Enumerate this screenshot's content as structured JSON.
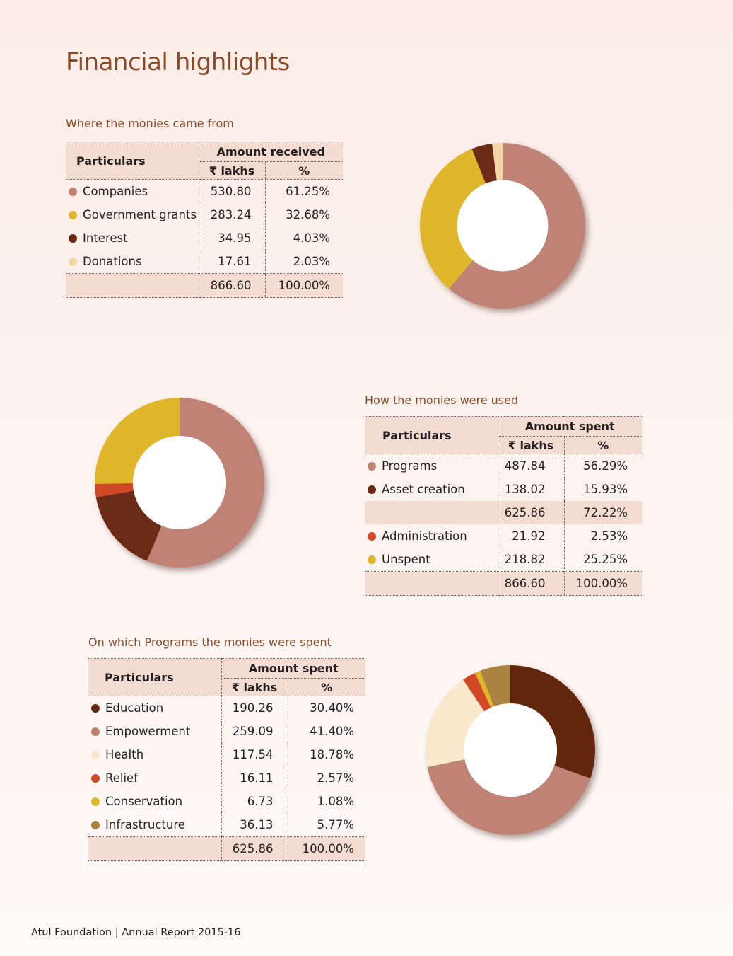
{
  "page": {
    "title": "Financial highlights"
  },
  "footer": {
    "org": "Atul Foundation",
    "separator": "|",
    "report": "Annual Report 2015-16"
  },
  "tables": [
    {
      "title": "Where the monies came from",
      "col_particulars": "Particulars",
      "col_group": "Amount received",
      "col_lakhs_symbol": "₹",
      "col_lakhs": "lakhs",
      "col_pct": "%",
      "rows": [
        {
          "label": "Companies",
          "lakhs": "530.80",
          "pct": "61.25%",
          "color": "#bf8374"
        },
        {
          "label": "Government grants",
          "lakhs": "283.24",
          "pct": "32.68%",
          "color": "#e0b62a"
        },
        {
          "label": "Interest",
          "lakhs": "34.95",
          "pct": "4.03%",
          "color": "#6b2a18"
        },
        {
          "label": "Donations",
          "lakhs": "17.61",
          "pct": "2.03%",
          "color": "#f1d7a3"
        }
      ],
      "total": {
        "lakhs": "866.60",
        "pct": "100.00%"
      }
    },
    {
      "title": "How the monies were used",
      "col_particulars": "Particulars",
      "col_group": "Amount spent",
      "col_lakhs_symbol": "₹",
      "col_lakhs": "lakhs",
      "col_pct": "%",
      "rows": [
        {
          "label": "Programs",
          "lakhs": "487.84",
          "pct": "56.29%",
          "color": "#bf8374"
        },
        {
          "label": "Asset creation",
          "lakhs": "138.02",
          "pct": "15.93%",
          "color": "#6b2a18"
        },
        {
          "label": "",
          "lakhs": "625.86",
          "pct": "72.22%",
          "subtotal": true
        },
        {
          "label": "Administration",
          "lakhs": "21.92",
          "pct": "2.53%",
          "color": "#cf4a26"
        },
        {
          "label": "Unspent",
          "lakhs": "218.82",
          "pct": "25.25%",
          "color": "#e0b62a"
        }
      ],
      "total": {
        "lakhs": "866.60",
        "pct": "100.00%"
      }
    },
    {
      "title": "On which Programs the monies were spent",
      "col_particulars": "Particulars",
      "col_group": "Amount spent",
      "col_lakhs_symbol": "₹",
      "col_lakhs": "lakhs",
      "col_pct": "%",
      "rows": [
        {
          "label": "Education",
          "lakhs": "190.26",
          "pct": "30.40%",
          "color": "#62250f"
        },
        {
          "label": "Empowerment",
          "lakhs": "259.09",
          "pct": "41.40%",
          "color": "#bf8374"
        },
        {
          "label": "Health",
          "lakhs": "117.54",
          "pct": "18.78%",
          "color": "#fae8cc"
        },
        {
          "label": "Relief",
          "lakhs": "16.11",
          "pct": "2.57%",
          "color": "#cf4a26"
        },
        {
          "label": "Conservation",
          "lakhs": "6.73",
          "pct": "1.08%",
          "color": "#e0b62a"
        },
        {
          "label": "Infrastructure",
          "lakhs": "36.13",
          "pct": "5.77%",
          "color": "#a98440"
        }
      ],
      "total": {
        "lakhs": "625.86",
        "pct": "100.00%"
      }
    }
  ],
  "chart_data": [
    {
      "type": "pie",
      "title": "Where the monies came from",
      "categories": [
        "Companies",
        "Government grants",
        "Interest",
        "Donations"
      ],
      "values": [
        61.25,
        32.68,
        4.03,
        2.03
      ],
      "colors": [
        "#bf8374",
        "#e0b62a",
        "#6b2a18",
        "#f1d7a3"
      ],
      "donut": true,
      "direction": "clockwise-from-top"
    },
    {
      "type": "pie",
      "title": "How the monies were used",
      "categories": [
        "Programs",
        "Asset creation",
        "Administration",
        "Unspent"
      ],
      "values": [
        56.29,
        15.93,
        2.53,
        25.25
      ],
      "colors": [
        "#bf8374",
        "#6b2a18",
        "#cf4a26",
        "#e0b62a"
      ],
      "donut": true,
      "direction": "clockwise-from-top"
    },
    {
      "type": "pie",
      "title": "On which Programs the monies were spent",
      "categories": [
        "Education",
        "Empowerment",
        "Health",
        "Relief",
        "Conservation",
        "Infrastructure"
      ],
      "values": [
        30.4,
        41.4,
        18.78,
        2.57,
        1.08,
        5.77
      ],
      "colors": [
        "#62250f",
        "#bf8374",
        "#fae8cc",
        "#cf4a26",
        "#e0b62a",
        "#a98440"
      ],
      "donut": true,
      "direction": "clockwise-from-top"
    }
  ]
}
